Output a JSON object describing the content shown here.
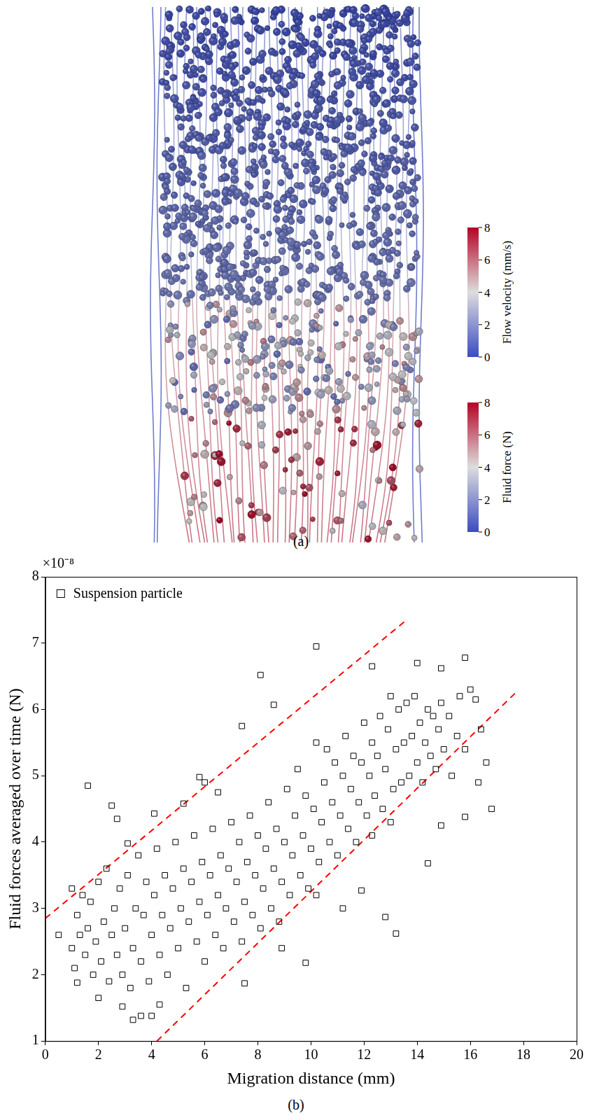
{
  "panel_a": {
    "panel_label": "(a)",
    "colorbars": [
      {
        "label": "Flow velocity (mm/s)",
        "range": [
          0,
          8
        ],
        "ticks": [
          0,
          2,
          4,
          6,
          8
        ]
      },
      {
        "label": "Fluid force (N)",
        "range": [
          0,
          8
        ],
        "ticks": [
          0,
          2,
          4,
          6,
          8
        ]
      }
    ],
    "colors": [
      "#3b4cc0",
      "#dddddd",
      "#b40426"
    ]
  },
  "chart_data": {
    "type": "scatter",
    "panel_label": "(b)",
    "y_multiplier": "×10⁻⁸",
    "x_label": "Migration distance (mm)",
    "y_label": "Fluid forces averaged over time (N)",
    "xlim": [
      0,
      20
    ],
    "xticks": [
      0,
      2,
      4,
      6,
      8,
      10,
      12,
      14,
      16,
      18,
      20
    ],
    "ylim": [
      1,
      8
    ],
    "yticks": [
      1,
      2,
      3,
      4,
      5,
      6,
      7,
      8
    ],
    "grid": false,
    "legend": "upper left",
    "series": [
      {
        "name": "Suspension particle",
        "marker": "square",
        "color": "#000000",
        "x": [
          1.6,
          2.5,
          2.7,
          3.1,
          8.1,
          10.2,
          7.4,
          8.6,
          12.3,
          14.0,
          15.8,
          14.9,
          9.8,
          12.8,
          13.2,
          11.2,
          14.4,
          16.8,
          15.8,
          14.9,
          8.9,
          7.5,
          3.3,
          3.6,
          4.0,
          2.9,
          4.3,
          0.5,
          1.0,
          1.2,
          2.0,
          16.0,
          16.2,
          16.4,
          16.6,
          16.3,
          5.8,
          6.0,
          6.5,
          5.2,
          4.1,
          10.2,
          11.9,
          12.3,
          13.0,
          1.0,
          1.1,
          1.2,
          1.3,
          1.4,
          1.5,
          1.6,
          1.7,
          1.8,
          1.9,
          2.0,
          2.1,
          2.2,
          2.3,
          2.4,
          2.5,
          2.6,
          2.7,
          2.8,
          2.9,
          3.0,
          3.1,
          3.2,
          3.3,
          3.4,
          3.5,
          3.6,
          3.7,
          3.8,
          3.9,
          4.0,
          4.1,
          4.2,
          4.3,
          4.4,
          4.5,
          4.6,
          4.7,
          4.8,
          4.9,
          5.0,
          5.1,
          5.2,
          5.3,
          5.4,
          5.5,
          5.6,
          5.7,
          5.8,
          5.9,
          6.0,
          6.1,
          6.2,
          6.3,
          6.4,
          6.5,
          6.6,
          6.7,
          6.8,
          6.9,
          7.0,
          7.1,
          7.2,
          7.3,
          7.4,
          7.5,
          7.6,
          7.7,
          7.8,
          7.9,
          8.0,
          8.1,
          8.2,
          8.3,
          8.4,
          8.5,
          8.6,
          8.7,
          8.8,
          8.9,
          9.0,
          9.1,
          9.2,
          9.3,
          9.4,
          9.5,
          9.6,
          9.7,
          9.8,
          9.9,
          10.0,
          10.1,
          10.2,
          10.3,
          10.4,
          10.5,
          10.6,
          10.7,
          10.8,
          10.9,
          11.0,
          11.1,
          11.2,
          11.3,
          11.4,
          11.5,
          11.6,
          11.7,
          11.8,
          11.9,
          12.0,
          12.1,
          12.2,
          12.3,
          12.4,
          12.5,
          12.6,
          12.7,
          12.8,
          12.9,
          13.0,
          13.1,
          13.2,
          13.3,
          13.4,
          13.5,
          13.6,
          13.7,
          13.8,
          13.9,
          14.0,
          14.1,
          14.2,
          14.3,
          14.4,
          14.5,
          14.6,
          14.7,
          14.8,
          14.9,
          15.0,
          15.2,
          15.3,
          15.5,
          15.6,
          15.8
        ],
        "values": [
          4.85,
          4.55,
          4.35,
          3.98,
          6.52,
          6.95,
          5.75,
          6.07,
          6.65,
          6.7,
          6.78,
          6.62,
          2.18,
          2.87,
          2.62,
          3.0,
          3.68,
          4.5,
          4.38,
          4.25,
          2.4,
          1.87,
          1.32,
          1.38,
          1.38,
          1.52,
          1.55,
          2.6,
          3.3,
          1.88,
          1.65,
          6.3,
          6.15,
          5.7,
          5.2,
          4.9,
          4.98,
          4.9,
          4.75,
          4.58,
          4.43,
          3.2,
          3.27,
          4.1,
          4.3,
          2.4,
          2.1,
          2.9,
          2.6,
          3.2,
          2.3,
          2.7,
          3.1,
          2.0,
          2.5,
          3.4,
          2.2,
          2.8,
          3.6,
          1.9,
          2.6,
          3.0,
          2.3,
          3.3,
          2.0,
          2.7,
          3.5,
          1.8,
          2.4,
          3.0,
          3.8,
          2.2,
          2.9,
          3.4,
          1.9,
          2.6,
          3.2,
          3.9,
          2.3,
          2.9,
          3.5,
          2.0,
          2.7,
          3.3,
          4.0,
          2.4,
          3.0,
          3.6,
          1.8,
          2.8,
          3.4,
          4.1,
          2.5,
          3.1,
          3.7,
          2.2,
          2.9,
          3.5,
          4.2,
          2.6,
          3.2,
          3.8,
          2.4,
          3.0,
          3.6,
          4.3,
          2.8,
          3.4,
          4.0,
          2.5,
          3.1,
          3.7,
          4.4,
          2.9,
          3.5,
          4.1,
          2.7,
          3.3,
          3.9,
          4.6,
          3.0,
          3.6,
          4.2,
          2.8,
          3.4,
          4.0,
          4.8,
          3.2,
          3.8,
          4.4,
          5.1,
          3.5,
          4.1,
          4.7,
          3.3,
          3.9,
          4.5,
          5.5,
          3.7,
          4.3,
          4.9,
          5.4,
          4.0,
          4.6,
          5.2,
          3.8,
          4.4,
          5.0,
          5.6,
          4.2,
          4.8,
          5.3,
          4.0,
          4.6,
          5.2,
          5.8,
          4.4,
          5.0,
          5.5,
          4.7,
          5.3,
          5.9,
          4.5,
          5.1,
          5.7,
          6.2,
          4.8,
          5.4,
          6.0,
          4.9,
          5.5,
          6.1,
          5.0,
          5.6,
          6.2,
          5.2,
          5.8,
          4.9,
          5.5,
          6.0,
          5.3,
          5.9,
          5.1,
          5.7,
          6.1,
          5.4,
          5.9,
          5.0,
          5.6,
          6.2,
          5.4
        ]
      },
      {
        "type": "line",
        "line_style": "dashed",
        "color": "#ff0000",
        "x": [
          0,
          13.6
        ],
        "values": [
          2.85,
          7.35
        ]
      },
      {
        "type": "line",
        "line_style": "dashed",
        "color": "#ff0000",
        "x": [
          4.2,
          17.7
        ],
        "values": [
          1.0,
          6.25
        ]
      }
    ]
  }
}
